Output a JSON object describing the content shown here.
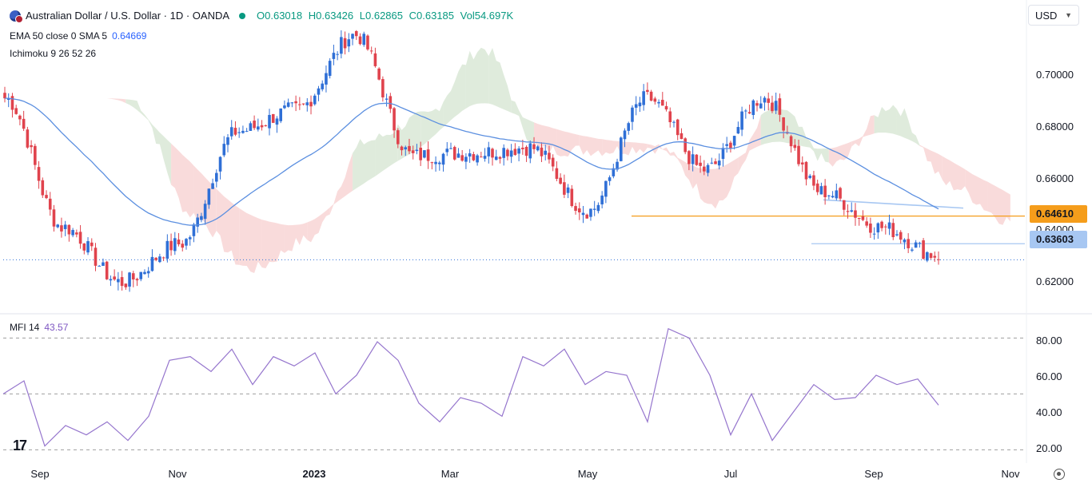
{
  "header": {
    "symbol_title": "Australian Dollar / U.S. Dollar · 1D · OANDA",
    "ohlc": {
      "open": "O0.63018",
      "high": "H0.63426",
      "low": "L0.62865",
      "close": "C0.63185",
      "volume": "Vol54.697K"
    },
    "ema_label": "EMA 50 close 0 SMA 5",
    "ema_value": "0.64669",
    "ichimoku_label": "Ichimoku 9 26 52 26",
    "mfi_label": "MFI 14",
    "mfi_value": "43.57",
    "currency": "USD"
  },
  "price_axis": [
    "0.70000",
    "0.68000",
    "0.66000",
    "0.64000",
    "0.62000"
  ],
  "price_tags": {
    "orange": "0.64610",
    "blue": "0.63603"
  },
  "mfi_axis": [
    "80.00",
    "60.00",
    "40.00",
    "20.00"
  ],
  "time_axis": [
    "Sep",
    "Nov",
    "2023",
    "Mar",
    "May",
    "Jul",
    "Sep",
    "Nov"
  ],
  "logo_text": "17",
  "colors": {
    "up": "#2f6fd6",
    "down": "#e0434d",
    "ema": "#5b8fe0",
    "cloud_bull": "#dbe9d8",
    "cloud_bear": "#f8d7d7",
    "mfi": "#9575cd",
    "support": "#f59d1b",
    "level": "#a7c7f2"
  },
  "chart_data": {
    "type": "candlestick",
    "title": "Australian Dollar / U.S. Dollar · 1D · OANDA",
    "ylim": [
      0.612,
      0.716
    ],
    "anchors": [
      {
        "x": "Sep",
        "close": 0.689
      },
      {
        "x": "Oct (mid)",
        "close": 0.642
      },
      {
        "x": "Oct (low)",
        "close": 0.622
      },
      {
        "x": "Nov",
        "close": 0.636
      },
      {
        "x": "Dec",
        "close": 0.677
      },
      {
        "x": "2023",
        "close": 0.685
      },
      {
        "x": "Feb (high)",
        "close": 0.712
      },
      {
        "x": "Mar",
        "close": 0.668
      },
      {
        "x": "Apr",
        "close": 0.669
      },
      {
        "x": "May",
        "close": 0.671
      },
      {
        "x": "Jun (low)",
        "close": 0.648
      },
      {
        "x": "Jun (high)",
        "close": 0.689
      },
      {
        "x": "Jul",
        "close": 0.663
      },
      {
        "x": "Jul (high)",
        "close": 0.689
      },
      {
        "x": "Aug",
        "close": 0.655
      },
      {
        "x": "Sep",
        "close": 0.642
      },
      {
        "x": "Oct",
        "close": 0.6318
      }
    ],
    "ema50": {
      "name": "EMA 50",
      "last": 0.64669
    },
    "levels": [
      {
        "name": "support",
        "value": 0.6461
      },
      {
        "name": "level",
        "value": 0.63603
      }
    ],
    "mfi": {
      "name": "MFI 14",
      "last": 43.57,
      "ylim": [
        15,
        90
      ],
      "anchors": [
        50,
        57,
        22,
        33,
        28,
        35,
        25,
        38,
        68,
        70,
        62,
        74,
        55,
        70,
        65,
        72,
        50,
        60,
        78,
        68,
        45,
        35,
        48,
        45,
        38,
        70,
        65,
        74,
        55,
        62,
        60,
        35,
        85,
        80,
        60,
        28,
        50,
        25,
        40,
        55,
        47,
        48,
        60,
        55,
        58,
        44
      ]
    }
  }
}
